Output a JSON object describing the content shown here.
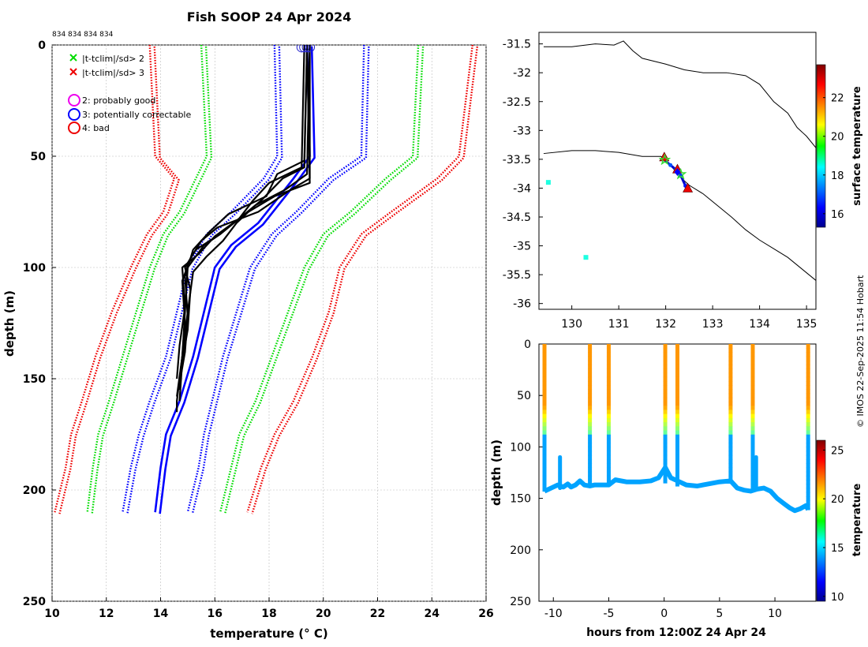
{
  "title": "Fish SOOP 24 Apr 2024",
  "watermark": "© IMOS 22-Sep-2025 11:54 Hobart",
  "chart_data": [
    {
      "type": "line",
      "id": "profile",
      "title": "Fish SOOP 24 Apr 2024",
      "header_label": "834 834 834 834",
      "xlabel": "temperature (° C)",
      "ylabel": "depth (m)",
      "xlim": [
        10,
        26
      ],
      "ylim": [
        0,
        250
      ],
      "y_reversed": true,
      "xticks": [
        10,
        12,
        14,
        16,
        18,
        20,
        22,
        24,
        26
      ],
      "yticks": [
        0,
        50,
        100,
        150,
        200,
        250
      ],
      "grid": true,
      "legend": {
        "position": "top-left",
        "items": [
          {
            "marker": "x",
            "color": "#00dd00",
            "label": "|t-tclim|/sd> 2"
          },
          {
            "marker": "x",
            "color": "#ee0000",
            "label": "|t-tclim|/sd> 3"
          },
          {
            "marker": "circle",
            "color": "#ee00ee",
            "label": "2: probably good"
          },
          {
            "marker": "circle",
            "color": "#0000ff",
            "label": "3: potentially correctable"
          },
          {
            "marker": "circle",
            "color": "#ee0000",
            "label": "4: bad"
          }
        ]
      },
      "climatology": [
        {
          "name": "mean",
          "color": "#0000ff",
          "style": "solid",
          "depth": [
            0,
            50,
            60,
            80,
            90,
            100,
            120,
            140,
            160,
            175,
            190,
            210
          ],
          "temperature": [
            19.4,
            19.5,
            18.9,
            17.6,
            16.6,
            16.0,
            15.6,
            15.2,
            14.7,
            14.2,
            14.0,
            13.8
          ]
        },
        {
          "name": "mean-1sd",
          "color": "#0000ff",
          "style": "dotted",
          "depth": [
            0,
            50,
            60,
            75,
            85,
            100,
            120,
            140,
            160,
            175,
            190,
            210
          ],
          "temperature": [
            18.2,
            18.3,
            17.8,
            16.6,
            15.7,
            15.0,
            14.6,
            14.2,
            13.6,
            13.2,
            12.9,
            12.6
          ]
        },
        {
          "name": "mean+1sd",
          "color": "#0000ff",
          "style": "dotted",
          "depth": [
            0,
            50,
            60,
            75,
            85,
            100,
            120,
            140,
            160,
            175,
            190,
            210
          ],
          "temperature": [
            21.5,
            21.4,
            20.2,
            19.0,
            18.1,
            17.3,
            16.8,
            16.3,
            15.9,
            15.6,
            15.4,
            15.0
          ]
        },
        {
          "name": "mean-2sd",
          "color": "#00dd00",
          "style": "dotted",
          "depth": [
            0,
            50,
            60,
            75,
            85,
            100,
            120,
            140,
            160,
            175,
            190,
            210
          ],
          "temperature": [
            15.5,
            15.7,
            15.3,
            14.7,
            14.1,
            13.6,
            13.1,
            12.6,
            12.1,
            11.7,
            11.5,
            11.3
          ]
        },
        {
          "name": "mean+2sd",
          "color": "#00dd00",
          "style": "dotted",
          "depth": [
            0,
            50,
            60,
            75,
            85,
            100,
            120,
            140,
            160,
            175,
            190,
            210
          ],
          "temperature": [
            23.5,
            23.3,
            22.3,
            21.0,
            20.0,
            19.3,
            18.7,
            18.1,
            17.5,
            16.9,
            16.6,
            16.2
          ]
        },
        {
          "name": "mean-3sd",
          "color": "#ee0000",
          "style": "dotted",
          "depth": [
            0,
            50,
            60,
            75,
            85,
            100,
            120,
            140,
            160,
            175,
            190,
            210
          ],
          "temperature": [
            13.6,
            13.8,
            14.5,
            14.1,
            13.5,
            12.9,
            12.2,
            11.6,
            11.1,
            10.7,
            10.5,
            10.1
          ]
        },
        {
          "name": "mean+3sd",
          "color": "#ee0000",
          "style": "dotted",
          "depth": [
            0,
            50,
            60,
            75,
            85,
            100,
            120,
            140,
            160,
            175,
            190,
            210
          ],
          "temperature": [
            25.5,
            25.0,
            24.2,
            22.5,
            21.4,
            20.6,
            20.2,
            19.6,
            18.9,
            18.2,
            17.7,
            17.2
          ]
        }
      ],
      "profiles": [
        {
          "depth": [
            0,
            55,
            60,
            70,
            80,
            85,
            90,
            100,
            120,
            140,
            160,
            165
          ],
          "temperature": [
            19.4,
            19.3,
            18.5,
            17.7,
            16.7,
            16.2,
            15.6,
            15.0,
            14.9,
            14.8,
            14.6,
            14.6
          ]
        },
        {
          "depth": [
            0,
            58,
            65,
            72,
            80,
            88,
            95,
            102,
            120,
            140,
            155
          ],
          "temperature": [
            19.5,
            19.4,
            18.6,
            17.5,
            16.8,
            16.3,
            15.7,
            15.2,
            15.0,
            14.8,
            14.7
          ]
        },
        {
          "depth": [
            0,
            55,
            62,
            70,
            78,
            86,
            94,
            100,
            118,
            135,
            150
          ],
          "temperature": [
            19.3,
            19.2,
            18.0,
            17.4,
            16.9,
            16.0,
            15.4,
            14.8,
            14.9,
            14.7,
            14.6
          ]
        },
        {
          "depth": [
            0,
            52,
            58,
            68,
            76,
            84,
            92,
            104,
            122,
            138,
            152
          ],
          "temperature": [
            19.4,
            19.3,
            18.3,
            17.9,
            16.5,
            15.8,
            15.2,
            14.9,
            15.0,
            14.9,
            14.7
          ]
        },
        {
          "depth": [
            0,
            60,
            65,
            75,
            82,
            88,
            96,
            106,
            125,
            140,
            158
          ],
          "temperature": [
            19.5,
            19.5,
            18.8,
            17.6,
            16.1,
            15.5,
            15.1,
            14.8,
            14.9,
            14.8,
            14.6
          ]
        },
        {
          "depth": [
            0,
            62,
            68,
            76,
            85,
            92,
            100,
            110,
            128,
            142,
            160
          ],
          "temperature": [
            19.4,
            19.5,
            18.2,
            17.1,
            16.2,
            15.3,
            14.9,
            15.1,
            15.0,
            14.8,
            14.7
          ]
        }
      ],
      "flag_circles": [
        {
          "depth": 1,
          "temperature": 19.2
        },
        {
          "depth": 1,
          "temperature": 19.3
        },
        {
          "depth": 1,
          "temperature": 19.4
        },
        {
          "depth": 1,
          "temperature": 19.5
        }
      ]
    },
    {
      "type": "scatter",
      "id": "map",
      "xlim": [
        129.3,
        135.2
      ],
      "ylim": [
        -36.1,
        -31.3
      ],
      "xticks": [
        130,
        131,
        132,
        133,
        134,
        135
      ],
      "yticks": [
        -31.5,
        -32,
        -32.5,
        -33,
        -33.5,
        -34,
        -34.5,
        -35,
        -35.5,
        -36
      ],
      "colorbar_label": "surface temperature",
      "colorbar_range": [
        15.3,
        23.7
      ],
      "colorbar_ticks": [
        16,
        18,
        20,
        22
      ],
      "track": [
        {
          "lon": 131.95,
          "lat": -33.5,
          "temperature": 18.3
        },
        {
          "lon": 132.1,
          "lat": -33.6,
          "temperature": 17.0
        },
        {
          "lon": 132.22,
          "lat": -33.68,
          "temperature": 17.5
        },
        {
          "lon": 132.32,
          "lat": -33.78,
          "temperature": 16.8
        },
        {
          "lon": 132.42,
          "lat": -33.96,
          "temperature": 16.5
        }
      ],
      "markers": [
        {
          "lon": 131.97,
          "lat": -33.46,
          "type": "triangle",
          "color": "#ee0000"
        },
        {
          "lon": 132.25,
          "lat": -33.67,
          "type": "triangle",
          "color": "#ee0000"
        },
        {
          "lon": 132.47,
          "lat": -34.0,
          "type": "triangle",
          "color": "#ee0000"
        },
        {
          "lon": 131.98,
          "lat": -33.51,
          "type": "star",
          "color": "#33dd33"
        },
        {
          "lon": 132.32,
          "lat": -33.76,
          "type": "star",
          "color": "#33dd33"
        },
        {
          "lon": 132.25,
          "lat": -33.72,
          "type": "diamond",
          "color": "#0000ff"
        }
      ],
      "points": [
        {
          "lon": 129.5,
          "lat": -33.9,
          "temperature": 18.7
        },
        {
          "lon": 130.3,
          "lat": -35.2,
          "temperature": 18.7
        }
      ],
      "coast_upper": [
        [
          129.4,
          -31.55
        ],
        [
          130.0,
          -31.55
        ],
        [
          130.5,
          -31.5
        ],
        [
          130.9,
          -31.52
        ],
        [
          131.1,
          -31.45
        ],
        [
          131.3,
          -31.62
        ],
        [
          131.5,
          -31.75
        ],
        [
          132.0,
          -31.85
        ],
        [
          132.4,
          -31.95
        ],
        [
          132.8,
          -32.0
        ],
        [
          133.3,
          -32.0
        ],
        [
          133.7,
          -32.05
        ],
        [
          134.0,
          -32.2
        ],
        [
          134.3,
          -32.5
        ],
        [
          134.6,
          -32.7
        ],
        [
          134.8,
          -32.95
        ],
        [
          135.0,
          -33.1
        ],
        [
          135.2,
          -33.3
        ]
      ],
      "coast_lower": [
        [
          129.4,
          -33.4
        ],
        [
          130.0,
          -33.35
        ],
        [
          130.5,
          -33.35
        ],
        [
          131.0,
          -33.38
        ],
        [
          131.5,
          -33.45
        ],
        [
          131.9,
          -33.45
        ],
        [
          132.1,
          -33.6
        ],
        [
          132.3,
          -33.8
        ],
        [
          132.5,
          -33.95
        ],
        [
          132.8,
          -34.1
        ],
        [
          133.1,
          -34.3
        ],
        [
          133.4,
          -34.5
        ],
        [
          133.7,
          -34.72
        ],
        [
          134.0,
          -34.9
        ],
        [
          134.3,
          -35.05
        ],
        [
          134.6,
          -35.2
        ],
        [
          134.9,
          -35.4
        ],
        [
          135.2,
          -35.6
        ]
      ]
    },
    {
      "type": "scatter",
      "id": "time_depth",
      "xlabel": "hours from 12:00Z 24 Apr 24",
      "ylabel": "depth (m)",
      "xlim": [
        -11.3,
        13.7
      ],
      "ylim": [
        0,
        250
      ],
      "y_reversed": true,
      "xticks": [
        -10,
        -5,
        0,
        5,
        10
      ],
      "yticks": [
        0,
        50,
        100,
        150,
        200,
        250
      ],
      "colorbar_label": "temperature",
      "colorbar_range": [
        9.5,
        26
      ],
      "colorbar_ticks": [
        10,
        15,
        20,
        25
      ],
      "casts": [
        {
          "hours": -10.8,
          "max_depth": 143
        },
        {
          "hours": -6.7,
          "max_depth": 137
        },
        {
          "hours": -5.0,
          "max_depth": 137
        },
        {
          "hours": 0.1,
          "max_depth": 135
        },
        {
          "hours": 1.2,
          "max_depth": 138
        },
        {
          "hours": 6.0,
          "max_depth": 133
        },
        {
          "hours": 8.0,
          "max_depth": 140
        },
        {
          "hours": 13.0,
          "max_depth": 161
        }
      ],
      "bottom_track": {
        "hours": [
          -10.8,
          -10.2,
          -9.6,
          -9.1,
          -8.7,
          -8.4,
          -8.0,
          -7.6,
          -7.2,
          -6.7,
          -6.3,
          -5.8,
          -5.0,
          -4.4,
          -3.4,
          -2.2,
          -1.2,
          -0.5,
          0.1,
          0.6,
          1.2,
          2.0,
          3.0,
          4.0,
          5.0,
          6.0,
          6.6,
          7.2,
          7.8,
          8.4,
          9.0,
          9.6,
          10.2,
          10.8,
          11.3,
          11.8,
          12.3,
          12.8,
          13.0
        ],
        "depth": [
          143,
          140,
          137,
          139,
          136,
          139,
          137,
          133,
          137,
          138,
          137,
          137,
          137,
          132,
          134,
          134,
          133,
          130,
          120,
          130,
          133,
          137,
          138,
          136,
          134,
          133,
          140,
          142,
          143,
          141,
          140,
          143,
          150,
          155,
          159,
          162,
          160,
          157,
          161
        ]
      },
      "spikes": [
        {
          "hours": -9.4,
          "top": 110,
          "bottom": 140
        },
        {
          "hours": 8.3,
          "top": 110,
          "bottom": 138
        }
      ]
    }
  ]
}
